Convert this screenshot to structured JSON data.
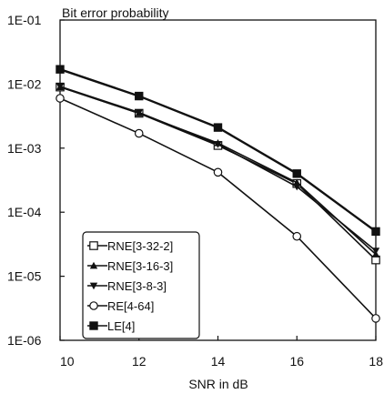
{
  "chart_data": {
    "type": "line",
    "title": "Bit error probability",
    "xlabel": "SNR in dB",
    "ylabel": "",
    "x": [
      10,
      12,
      14,
      16,
      18
    ],
    "xlim": [
      10,
      18
    ],
    "ylim": [
      1e-06,
      0.1
    ],
    "y_scale": "log",
    "x_ticks": [
      "10",
      "12",
      "14",
      "16",
      "18"
    ],
    "y_ticks": [
      "1E-01",
      "1E-02",
      "1E-03",
      "1E-04",
      "1E-05",
      "1E-06"
    ],
    "grid": false,
    "legend_position": "bottom-left",
    "series": [
      {
        "name": "RNE[3-32-2]",
        "marker": "open-square",
        "values": [
          0.009,
          0.0035,
          0.0011,
          0.00028,
          1.8e-05
        ]
      },
      {
        "name": "RNE[3-16-3]",
        "marker": "triangle-up",
        "values": [
          0.009,
          0.0035,
          0.0012,
          0.00029,
          2.2e-05
        ]
      },
      {
        "name": "RNE[3-8-3]",
        "marker": "triangle-down",
        "values": [
          0.0092,
          0.0036,
          0.00115,
          0.00025,
          2.5e-05
        ]
      },
      {
        "name": "RE[4-64]",
        "marker": "open-circle",
        "values": [
          0.006,
          0.0017,
          0.00042,
          4.2e-05,
          2.2e-06
        ]
      },
      {
        "name": "LE[4]",
        "marker": "filled-square",
        "values": [
          0.017,
          0.0065,
          0.0021,
          0.0004,
          5e-05
        ]
      }
    ]
  }
}
